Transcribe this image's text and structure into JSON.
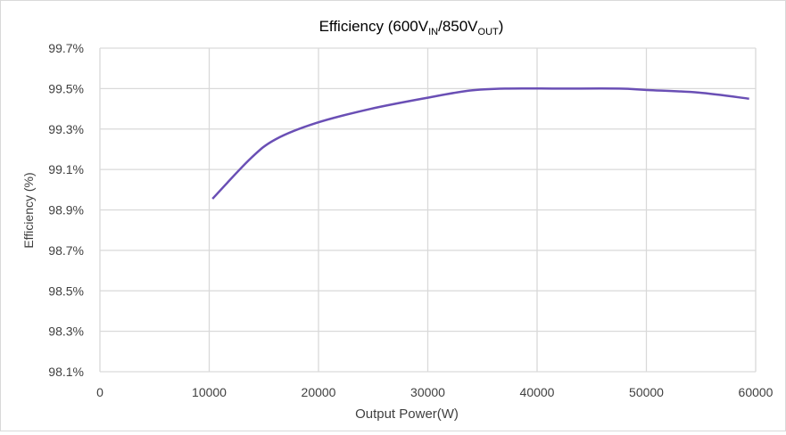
{
  "chart_data": {
    "type": "line",
    "title": "Efficiency (600V",
    "title_parts": {
      "a": "Efficiency (600V",
      "sub1": "IN",
      "b": "/850V",
      "sub2": "OUT",
      "c": ")"
    },
    "xlabel": "Output Power(W)",
    "ylabel": "Efficiency (%)",
    "xlim": [
      0,
      60000
    ],
    "ylim": [
      98.1,
      99.7
    ],
    "x_ticks": [
      "0",
      "10000",
      "20000",
      "30000",
      "40000",
      "50000",
      "60000"
    ],
    "y_ticks": [
      "98.1%",
      "98.3%",
      "98.5%",
      "98.7%",
      "98.9%",
      "99.1%",
      "99.3%",
      "99.5%",
      "99.7%"
    ],
    "grid": true,
    "line_color": "#6a4fb5",
    "series": [
      {
        "x": [
          10300,
          13800,
          16100,
          19800,
          24800,
          30000,
          33800,
          37100,
          42100,
          47500,
          50100,
          54800,
          59400
        ],
        "y": [
          98.955,
          99.155,
          99.25,
          99.33,
          99.4,
          99.455,
          99.49,
          99.5,
          99.5,
          99.5,
          99.493,
          99.48,
          99.45
        ]
      }
    ]
  }
}
